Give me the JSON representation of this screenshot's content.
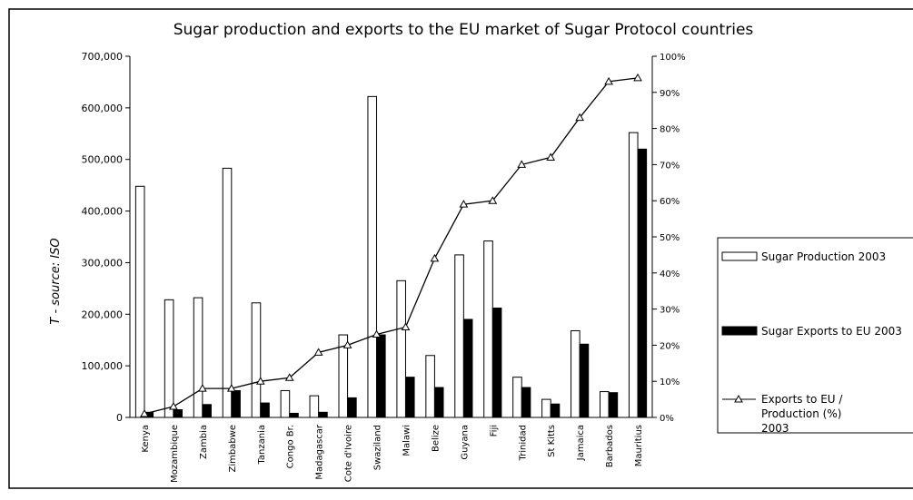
{
  "chart_data": {
    "type": "bar",
    "title": "Sugar production and exports to the EU market of Sugar Protocol countries",
    "y_label": "T - source: ISO",
    "categories": [
      "Kenya",
      "Mozambique",
      "Zambia",
      "Zimbabwe",
      "Tanzania",
      "Congo Br.",
      "Madagascar",
      "Cote d'Ivoire",
      "Swaziland",
      "Malawi",
      "Belize",
      "Guyana",
      "Fiji",
      "Trinidad",
      "St Kitts",
      "Jamaica",
      "Barbados",
      "Mauritius"
    ],
    "series": [
      {
        "name": "Sugar Production 2003",
        "color": "#ffffff",
        "values": [
          448000,
          228000,
          232000,
          483000,
          222000,
          52000,
          42000,
          160000,
          622000,
          265000,
          120000,
          315000,
          342000,
          78000,
          35000,
          168000,
          50000,
          552000
        ]
      },
      {
        "name": "Sugar Exports to EU 2003",
        "color": "#000000",
        "values": [
          10000,
          15000,
          25000,
          52000,
          28000,
          8000,
          10000,
          38000,
          160000,
          78000,
          58000,
          190000,
          212000,
          58000,
          26000,
          142000,
          48000,
          520000
        ]
      },
      {
        "name": "Exports to EU / Production (%) 2003",
        "type": "line",
        "axis": "y2",
        "color": "#000000",
        "values": [
          1,
          3,
          8,
          8,
          10,
          11,
          18,
          20,
          23,
          25,
          44,
          59,
          60,
          70,
          72,
          83,
          93,
          94
        ]
      }
    ],
    "ylim": [
      0,
      700000
    ],
    "yticks": [
      0,
      {
        "value": 100000,
        "label": "100,000"
      },
      {
        "value": 200000,
        "label": "200,000"
      },
      {
        "value": 300000,
        "label": "300,000"
      },
      {
        "value": 400000,
        "label": "400,000"
      },
      {
        "value": 500000,
        "label": "500,000"
      },
      {
        "value": 600000,
        "label": "600,000"
      },
      {
        "value": 700000,
        "label": "700,000"
      }
    ],
    "y2lim": [
      0,
      100
    ],
    "y2ticks": [
      {
        "value": 0,
        "label": "0%"
      },
      {
        "value": 10,
        "label": "10%"
      },
      {
        "value": 20,
        "label": "20%"
      },
      {
        "value": 30,
        "label": "30%"
      },
      {
        "value": 40,
        "label": "40%"
      },
      {
        "value": 50,
        "label": "50%"
      },
      {
        "value": 60,
        "label": "60%"
      },
      {
        "value": 70,
        "label": "70%"
      },
      {
        "value": 80,
        "label": "80%"
      },
      {
        "value": 90,
        "label": "90%"
      },
      {
        "value": 100,
        "label": "100%"
      }
    ],
    "grid": false,
    "legend": "right"
  }
}
